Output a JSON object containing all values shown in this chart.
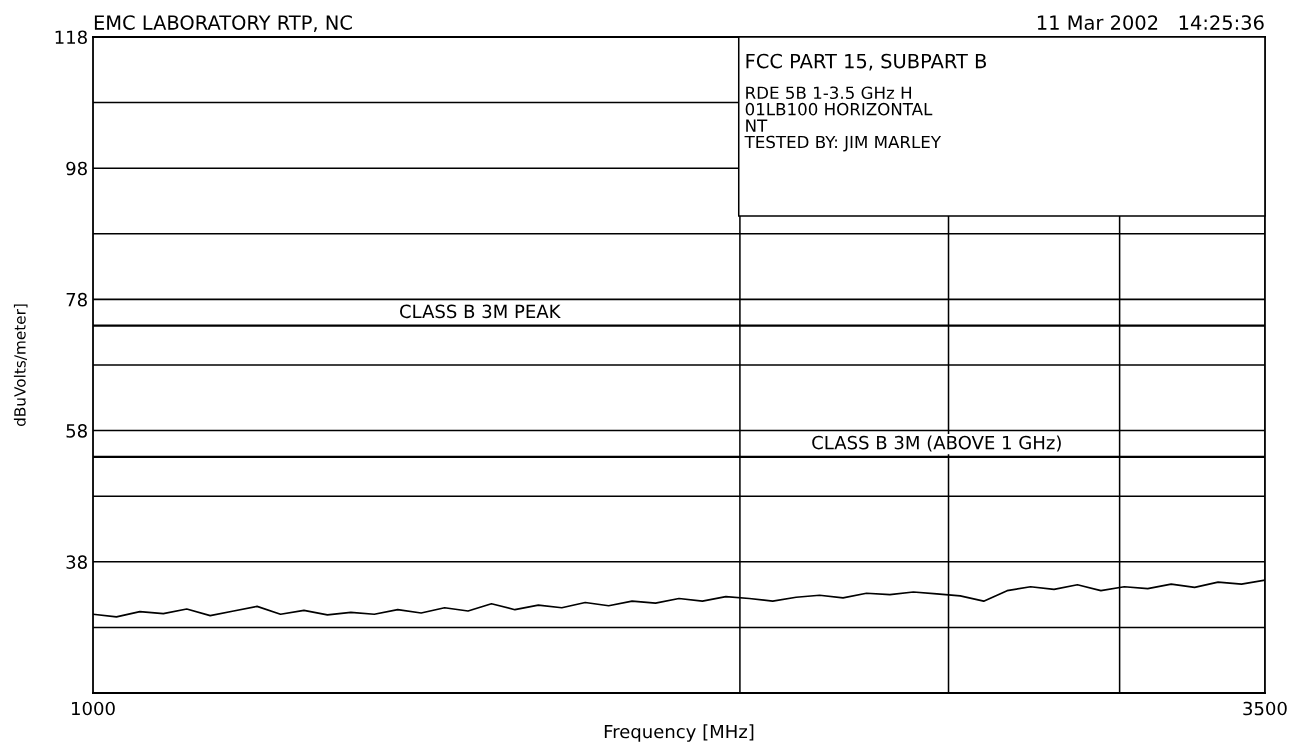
{
  "chart_data": {
    "type": "line",
    "title": "EMC LABORATORY RTP, NC",
    "subtitle": "11 Mar 2002   14:25:36",
    "xlabel": "Frequency [MHz]",
    "ylabel": "dBuVolts/meter]",
    "annotations": [
      "FCC PART 15, SUBPART B",
      "RDE 5B 1-3.5 GHz H",
      "01LB100 HORIZONTAL",
      "NT",
      "TESTED BY: JIM MARLEY"
    ],
    "x": [
      1000,
      1050,
      1100,
      1150,
      1200,
      1250,
      1300,
      1350,
      1400,
      1450,
      1500,
      1550,
      1600,
      1650,
      1700,
      1750,
      1800,
      1850,
      1900,
      1950,
      2000,
      2050,
      2100,
      2150,
      2200,
      2250,
      2300,
      2350,
      2400,
      2450,
      2500,
      2550,
      2600,
      2650,
      2700,
      2750,
      2800,
      2850,
      2900,
      2950,
      3000,
      3050,
      3100,
      3150,
      3200,
      3250,
      3300,
      3350,
      3400,
      3450,
      3500
    ],
    "series": [
      {
        "color": "#000000",
        "values": [
          30.0,
          29.6,
          30.4,
          30.1,
          30.8,
          29.8,
          30.5,
          31.2,
          30.0,
          30.6,
          29.9,
          30.3,
          30.0,
          30.7,
          30.2,
          31.0,
          30.5,
          31.6,
          30.7,
          31.4,
          31.0,
          31.8,
          31.3,
          32.0,
          31.7,
          32.4,
          32.0,
          32.7,
          32.4,
          32.0,
          32.6,
          32.9,
          32.5,
          33.2,
          33.0,
          33.4,
          33.1,
          32.8,
          32.0,
          33.6,
          34.2,
          33.8,
          34.5,
          33.6,
          34.2,
          33.9,
          34.6,
          34.1,
          34.9,
          34.6,
          35.2
        ]
      }
    ],
    "xlim": [
      1000,
      3500
    ],
    "xticks": [
      1000,
      3500
    ],
    "ylim": [
      18,
      118
    ],
    "yticks": [
      {
        "value": 28,
        "label": null
      },
      38,
      {
        "value": 48,
        "label": null
      },
      58,
      {
        "value": 68,
        "label": null
      },
      78,
      {
        "value": 88,
        "label": null
      },
      98,
      {
        "value": 108,
        "label": null
      },
      118
    ],
    "grid": "y",
    "ref_lines": [
      {
        "axis": "y",
        "value": 74,
        "label": "CLASS B 3M PEAK"
      },
      {
        "axis": "y",
        "value": 54,
        "label": "CLASS B 3M (ABOVE 1 GHz)"
      },
      {
        "axis": "x",
        "value": 2380
      },
      {
        "axis": "x",
        "value": 2825
      },
      {
        "axis": "x",
        "value": 3190
      }
    ]
  }
}
